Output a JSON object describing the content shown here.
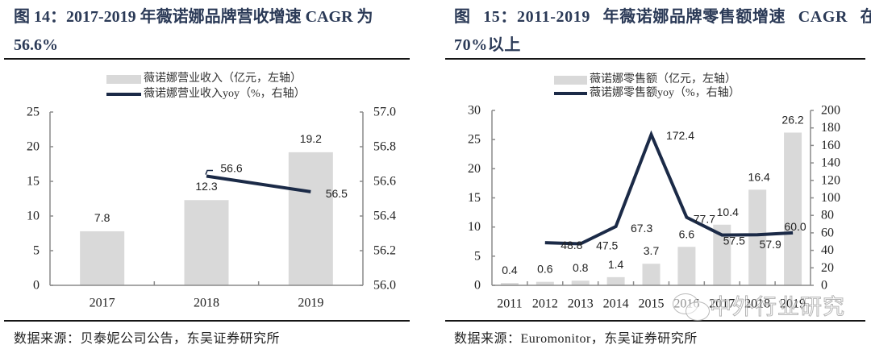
{
  "panels": [
    {
      "title_lines": [
        "图 14：2017-2019 年薇诺娜品牌营收增速 CAGR 为",
        "56.6%"
      ],
      "source": "数据来源：贝泰妮公司公告，东吴证券研究所"
    },
    {
      "title_lines": [
        "图 15：2011-2019 年薇诺娜品牌零售额增速 CAGR 在",
        "70%以上"
      ],
      "source": "数据来源：Euromonitor，东吴证券研究所"
    }
  ],
  "watermark": "中外行业研究",
  "chart_data": [
    {
      "type": "bar",
      "title": "图 14：2017-2019 年薇诺娜品牌营收增速 CAGR 为 56.6%",
      "categories": [
        "2017",
        "2018",
        "2019"
      ],
      "series": [
        {
          "name": "薇诺娜营业收入（亿元，左轴）",
          "type": "bar",
          "axis": "left",
          "values": [
            7.8,
            12.3,
            19.2
          ],
          "labels": [
            "7.8",
            "12.3",
            "19.2"
          ]
        },
        {
          "name": "薇诺娜营业收入yoy（%，右轴）",
          "type": "line",
          "axis": "right",
          "values": [
            null,
            56.63,
            56.54
          ],
          "labels": [
            null,
            "56.6",
            "56.5"
          ]
        }
      ],
      "y_left": {
        "min": 0,
        "max": 25,
        "ticks": [
          "0",
          "5",
          "10",
          "15",
          "20",
          "25"
        ]
      },
      "y_right": {
        "min": 56.0,
        "max": 57.0,
        "ticks": [
          "56.0",
          "56.2",
          "56.4",
          "56.6",
          "56.8",
          "57.0"
        ]
      },
      "xlabel": "",
      "ylabel": "",
      "grid": false,
      "legend": "top-center",
      "colors": {
        "bar": "#d9d9d9",
        "line": "#1b2a47",
        "axis": "#8a8a8a"
      }
    },
    {
      "type": "bar",
      "title": "图 15：2011-2019 年薇诺娜品牌零售额增速 CAGR 在 70%以上",
      "categories": [
        "2011",
        "2012",
        "2013",
        "2014",
        "2015",
        "2016",
        "2017",
        "2018",
        "2019"
      ],
      "series": [
        {
          "name": "薇诺娜零售额（亿元，左轴）",
          "type": "bar",
          "axis": "left",
          "values": [
            0.4,
            0.6,
            0.8,
            1.4,
            3.7,
            6.6,
            10.4,
            16.4,
            26.2
          ],
          "labels": [
            "0.4",
            "0.6",
            "0.8",
            "1.4",
            "3.7",
            "6.6",
            "10.4",
            "16.4",
            "26.2"
          ]
        },
        {
          "name": "薇诺娜零售额yoy（%，右轴）",
          "type": "line",
          "axis": "right",
          "values": [
            null,
            48.8,
            47.5,
            67.3,
            172.4,
            77.7,
            57.5,
            57.9,
            60.0
          ],
          "labels": [
            null,
            "48.8",
            "47.5",
            "67.3",
            "172.4",
            "77.7",
            "57.5",
            "57.9",
            "60.0"
          ]
        }
      ],
      "y_left": {
        "min": 0,
        "max": 30,
        "ticks": [
          "0",
          "5",
          "10",
          "15",
          "20",
          "25",
          "30"
        ]
      },
      "y_right": {
        "min": 0,
        "max": 200,
        "ticks": [
          "0",
          "20",
          "40",
          "60",
          "80",
          "100",
          "120",
          "140",
          "160",
          "180",
          "200"
        ]
      },
      "xlabel": "",
      "ylabel": "",
      "grid": false,
      "legend": "top-center",
      "colors": {
        "bar": "#d9d9d9",
        "line": "#1b2a47",
        "axis": "#8a8a8a"
      }
    }
  ]
}
